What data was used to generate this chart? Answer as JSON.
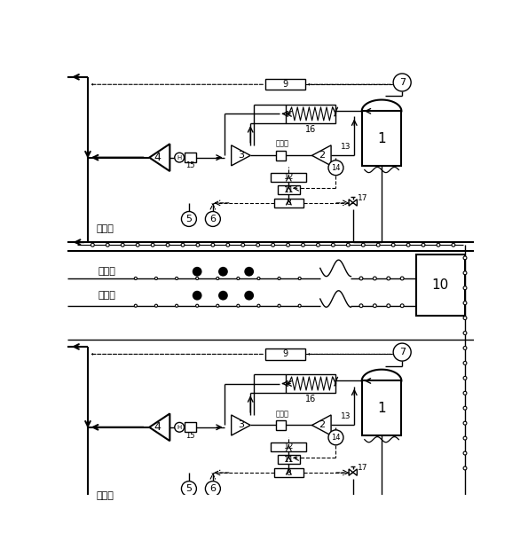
{
  "row1_label": "第一列",
  "row2_label": "第二列",
  "row3_label": "第三列",
  "row4_label": "第四列",
  "label_expander": "膨胀机",
  "lw": 1.0,
  "lw2": 1.5
}
